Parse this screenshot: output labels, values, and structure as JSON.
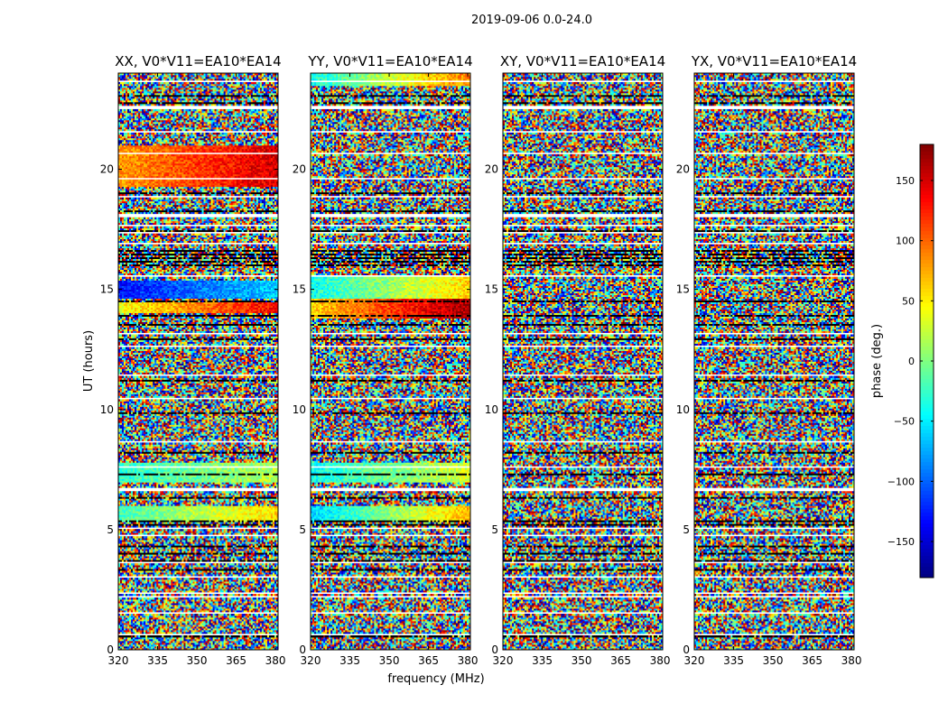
{
  "chart_data": {
    "type": "heatmap",
    "suptitle": "2019-09-06 0.0-24.0",
    "xlabel": "frequency (MHz)",
    "ylabel": "UT (hours)",
    "xlim": [
      320,
      381
    ],
    "ylim": [
      0,
      24
    ],
    "xticks": [
      320,
      335,
      350,
      365,
      380
    ],
    "yticks": [
      0,
      5,
      10,
      15,
      20
    ],
    "panels": [
      {
        "title": "XX, V0*V11=EA10*EA14",
        "structured_bands": [
          {
            "ut": [
              14.0,
              14.5
            ],
            "phase_start": 40,
            "phase_end": 140
          },
          {
            "ut": [
              14.6,
              15.4
            ],
            "phase_start": -130,
            "phase_end": -60
          },
          {
            "ut": [
              5.3,
              6.0
            ],
            "phase_start": -20,
            "phase_end": 60
          },
          {
            "ut": [
              7.0,
              7.8
            ],
            "phase_start": -30,
            "phase_end": 20
          },
          {
            "ut": [
              19.3,
              21.0
            ],
            "phase_start": 80,
            "phase_end": 150
          }
        ]
      },
      {
        "title": "YY, V0*V11=EA10*EA14",
        "structured_bands": [
          {
            "ut": [
              13.8,
              14.6
            ],
            "phase_start": 60,
            "phase_end": 170
          },
          {
            "ut": [
              14.6,
              15.5
            ],
            "phase_start": -40,
            "phase_end": 60
          },
          {
            "ut": [
              5.3,
              6.0
            ],
            "phase_start": -60,
            "phase_end": 70
          },
          {
            "ut": [
              7.0,
              7.8
            ],
            "phase_start": -40,
            "phase_end": 30
          },
          {
            "ut": [
              23.5,
              24.0
            ],
            "phase_start": -40,
            "phase_end": 90
          }
        ]
      },
      {
        "title": "XY, V0*V11=EA10*EA14",
        "structured_bands": []
      },
      {
        "title": "YX, V0*V11=EA10*EA14",
        "structured_bands": []
      }
    ],
    "gap_rows_ut": [
      0.6,
      1.5,
      2.2,
      2.3,
      3.0,
      3.6,
      4.7,
      5.0,
      6.6,
      6.7,
      7.6,
      8.6,
      10.4,
      11.4,
      12.6,
      13.1,
      15.5,
      16.9,
      17.3,
      17.6,
      18.0,
      18.1,
      18.8,
      19.6,
      20.6,
      21.5,
      22.5,
      22.6,
      23.6
    ],
    "flag_rows_ut": [
      0.5,
      3.3,
      3.7,
      4.0,
      4.3,
      5.2,
      5.3,
      6.3,
      7.3,
      8.2,
      9.8,
      11.2,
      12.9,
      13.5,
      13.9,
      14.5,
      16.0,
      16.1,
      16.3,
      16.4,
      16.6,
      17.4,
      18.2,
      19.0,
      22.7,
      23.0
    ],
    "colorbar": {
      "label": "phase (deg.)",
      "vmin": -180,
      "vmax": 180,
      "ticks": [
        "150",
        "100",
        "50",
        "0",
        "−50",
        "−100",
        "−150"
      ],
      "tick_values": [
        150,
        100,
        50,
        0,
        -50,
        -100,
        -150
      ],
      "colormap": "jet"
    }
  }
}
